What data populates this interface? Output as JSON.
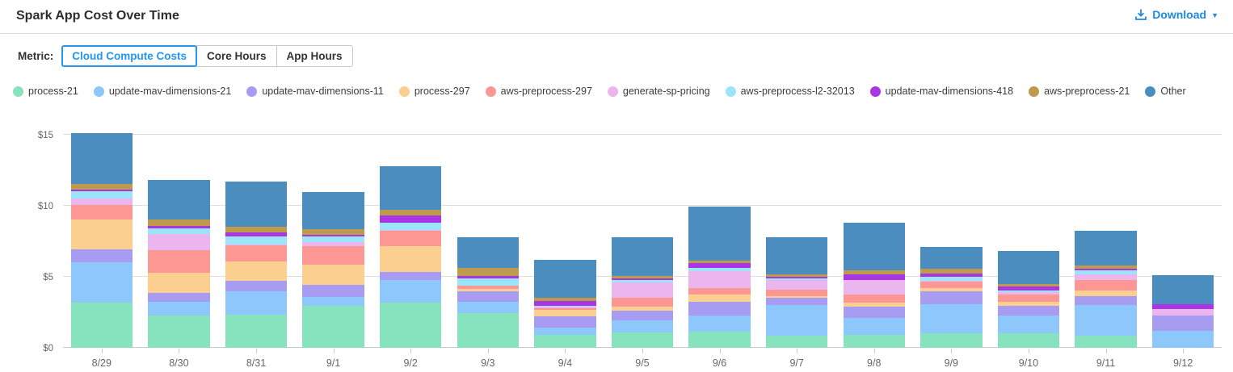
{
  "header": {
    "title": "Spark App Cost Over Time",
    "download_label": "Download"
  },
  "metric": {
    "label": "Metric:",
    "tabs": [
      {
        "label": "Cloud Compute Costs",
        "selected": true
      },
      {
        "label": "Core Hours",
        "selected": false
      },
      {
        "label": "App Hours",
        "selected": false
      }
    ]
  },
  "colors": {
    "accent": "#2196F3",
    "download_link": "#1E88E5",
    "gridline": "#DDDDDD",
    "axis_line": "#C9C9C9",
    "axis_text": "#666666",
    "legend_text": "#3C3C3C"
  },
  "icons": {
    "download": "download-tray-icon",
    "caret": "caret-down-icon"
  },
  "chart_data": {
    "type": "bar",
    "stacked": true,
    "title": "Spark App Cost Over Time",
    "xlabel": "",
    "ylabel": "",
    "ylim": [
      0,
      15
    ],
    "yticks": [
      {
        "value": 0,
        "label": "$0"
      },
      {
        "value": 5,
        "label": "$5"
      },
      {
        "value": 10,
        "label": "$10"
      },
      {
        "value": 15,
        "label": "$15"
      }
    ],
    "grid": true,
    "legend_position": "top",
    "categories": [
      "8/29",
      "8/30",
      "8/31",
      "9/1",
      "9/2",
      "9/3",
      "9/4",
      "9/5",
      "9/6",
      "9/7",
      "9/8",
      "9/9",
      "9/10",
      "9/11",
      "9/12"
    ],
    "series": [
      {
        "name": "process-21",
        "color": "#86E3BD",
        "values": [
          3.2,
          2.3,
          2.35,
          2.95,
          3.2,
          2.45,
          0.9,
          1.1,
          1.15,
          0.85,
          0.9,
          1.0,
          1.05,
          0.85,
          0
        ]
      },
      {
        "name": "update-mav-dimensions-21",
        "color": "#8DC7FB",
        "values": [
          2.8,
          0.95,
          1.6,
          0.65,
          1.55,
          0.8,
          0.55,
          0.85,
          1.15,
          2.15,
          1.2,
          2.05,
          1.25,
          2.15,
          1.2
        ]
      },
      {
        "name": "update-mav-dimensions-11",
        "color": "#A89BF2",
        "values": [
          0.95,
          0.6,
          0.75,
          0.85,
          0.6,
          0.75,
          0.75,
          0.65,
          0.95,
          0.55,
          0.8,
          0.95,
          0.65,
          0.65,
          1.05
        ]
      },
      {
        "name": "process-297",
        "color": "#FACF90",
        "values": [
          2.1,
          1.45,
          1.4,
          1.4,
          1.8,
          0.15,
          0.45,
          0.3,
          0.5,
          0.1,
          0.3,
          0.2,
          0.3,
          0.4,
          0
        ]
      },
      {
        "name": "aws-preprocess-297",
        "color": "#FD9794",
        "values": [
          1.0,
          1.6,
          1.1,
          1.3,
          1.1,
          0.2,
          0.15,
          0.65,
          0.45,
          0.45,
          0.55,
          0.45,
          0.5,
          0.7,
          0
        ]
      },
      {
        "name": "generate-sp-pricing",
        "color": "#EBB6ED",
        "values": [
          0.45,
          1.1,
          0.1,
          0.3,
          0.05,
          0.05,
          0.1,
          1.05,
          1.2,
          0.65,
          1.0,
          0.05,
          0.15,
          0.45,
          0.5
        ]
      },
      {
        "name": "aws-preprocess-l2-32013",
        "color": "#9BE4FA",
        "values": [
          0.5,
          0.4,
          0.55,
          0.4,
          0.5,
          0.5,
          0.05,
          0.2,
          0.2,
          0.15,
          0.05,
          0.3,
          0.15,
          0.25,
          0
        ]
      },
      {
        "name": "update-mav-dimensions-418",
        "color": "#A935E3",
        "values": [
          0.15,
          0.2,
          0.3,
          0.1,
          0.5,
          0.15,
          0.35,
          0.1,
          0.35,
          0.1,
          0.35,
          0.25,
          0.3,
          0.1,
          0.3
        ]
      },
      {
        "name": "aws-preprocess-21",
        "color": "#BE9A4D",
        "values": [
          0.4,
          0.45,
          0.4,
          0.4,
          0.4,
          0.6,
          0.2,
          0.15,
          0.2,
          0.15,
          0.3,
          0.3,
          0.15,
          0.25,
          0
        ]
      },
      {
        "name": "Other",
        "color": "#4A8DBE",
        "values": [
          3.55,
          2.75,
          3.15,
          2.65,
          3.1,
          2.15,
          2.7,
          2.75,
          3.8,
          2.65,
          3.35,
          1.55,
          2.35,
          2.45,
          2.05
        ]
      }
    ]
  }
}
